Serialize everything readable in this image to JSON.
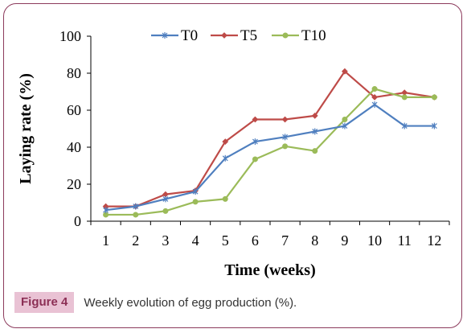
{
  "chart_data": {
    "type": "line",
    "title": "",
    "xlabel": "Time (weeks)",
    "ylabel": "Laying rate (%)",
    "x": [
      1,
      2,
      3,
      4,
      5,
      6,
      7,
      8,
      9,
      10,
      11,
      12
    ],
    "ylim": [
      0,
      100
    ],
    "yticks": [
      0,
      20,
      40,
      60,
      80,
      100
    ],
    "grid": false,
    "legend_position": "top",
    "series": [
      {
        "name": "T0",
        "color": "#4f7fbf",
        "marker": "star",
        "values": [
          6,
          8,
          12,
          16,
          34,
          43,
          45.5,
          48.5,
          51.5,
          63,
          51.5,
          51.5
        ]
      },
      {
        "name": "T5",
        "color": "#be4b48",
        "marker": "diamond",
        "values": [
          8,
          8,
          14.5,
          16.5,
          43,
          55,
          55,
          57,
          81,
          67,
          69.5,
          67
        ]
      },
      {
        "name": "T10",
        "color": "#9bbb59",
        "marker": "circle",
        "values": [
          3.5,
          3.5,
          5.5,
          10.5,
          12,
          33.5,
          40.5,
          38,
          55,
          71.5,
          67,
          67
        ]
      }
    ]
  },
  "caption": {
    "label": "Figure 4",
    "text": "Weekly evolution of egg production (%)."
  }
}
